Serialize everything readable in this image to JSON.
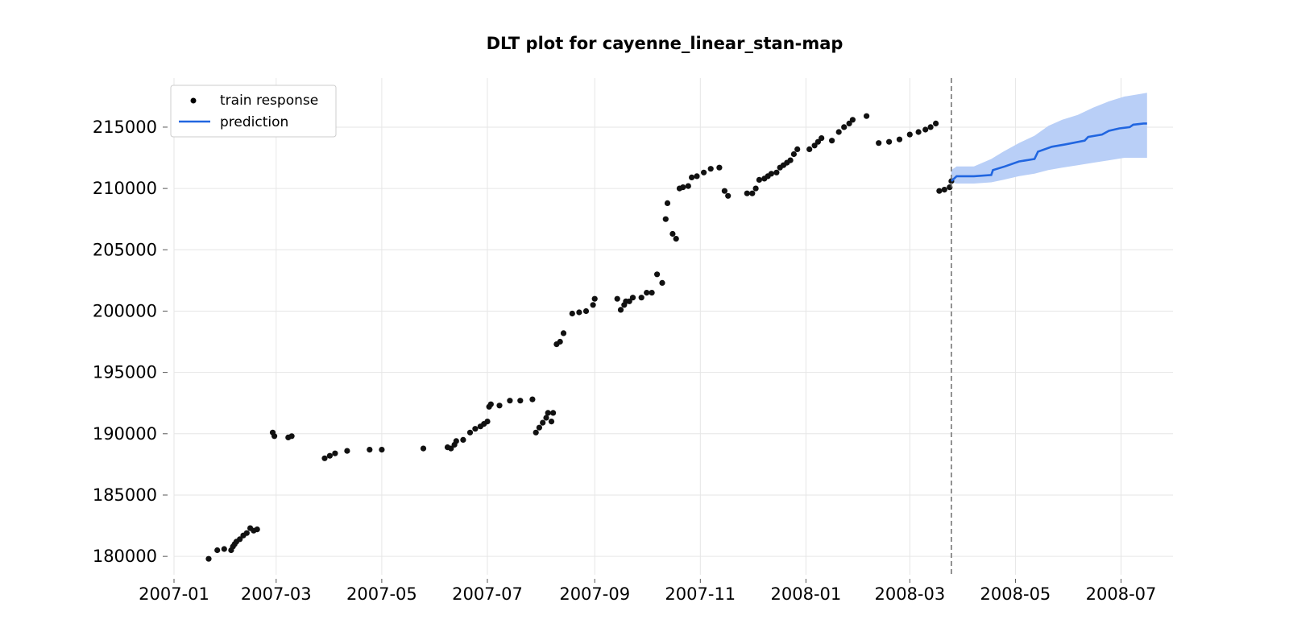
{
  "chart_data": {
    "type": "scatter",
    "title": "DLT plot for cayenne_linear_stan-map",
    "xlabel": "",
    "ylabel": "",
    "x_axis": "date",
    "xlim": [
      "2007-01-01",
      "2008-07-31"
    ],
    "ylim": [
      178500,
      219000
    ],
    "x_ticks": [
      "2007-01",
      "2007-03",
      "2007-05",
      "2007-07",
      "2007-09",
      "2007-11",
      "2008-01",
      "2008-03",
      "2008-05",
      "2008-07"
    ],
    "y_ticks": [
      180000,
      185000,
      190000,
      195000,
      200000,
      205000,
      210000,
      215000
    ],
    "grid": true,
    "legend_position": "top-left",
    "legend": [
      {
        "label": "train response",
        "marker": "dot",
        "color": "#000000"
      },
      {
        "label": "prediction",
        "marker": "line",
        "color": "#2166e0"
      }
    ],
    "split_date": "2008-03-25",
    "colors": {
      "train_points": "#111111",
      "prediction_line": "#2166e0",
      "prediction_band": "#b9cff7",
      "split_line": "#777777",
      "grid": "#e6e6e6"
    },
    "series": [
      {
        "name": "train response",
        "kind": "scatter",
        "points": [
          [
            "2007-01-21",
            179800
          ],
          [
            "2007-01-26",
            180500
          ],
          [
            "2007-01-30",
            180600
          ],
          [
            "2007-02-03",
            180500
          ],
          [
            "2007-02-04",
            180800
          ],
          [
            "2007-02-05",
            181000
          ],
          [
            "2007-02-06",
            181200
          ],
          [
            "2007-02-08",
            181400
          ],
          [
            "2007-02-10",
            181700
          ],
          [
            "2007-02-12",
            181900
          ],
          [
            "2007-02-14",
            182300
          ],
          [
            "2007-02-16",
            182100
          ],
          [
            "2007-02-18",
            182200
          ],
          [
            "2007-02-27",
            190100
          ],
          [
            "2007-02-28",
            189800
          ],
          [
            "2007-03-08",
            189700
          ],
          [
            "2007-03-10",
            189800
          ],
          [
            "2007-03-29",
            188000
          ],
          [
            "2007-04-01",
            188200
          ],
          [
            "2007-04-04",
            188400
          ],
          [
            "2007-04-11",
            188600
          ],
          [
            "2007-04-24",
            188700
          ],
          [
            "2007-05-01",
            188700
          ],
          [
            "2007-05-25",
            188800
          ],
          [
            "2007-06-08",
            188900
          ],
          [
            "2007-06-10",
            188800
          ],
          [
            "2007-06-12",
            189100
          ],
          [
            "2007-06-13",
            189400
          ],
          [
            "2007-06-17",
            189500
          ],
          [
            "2007-06-21",
            190100
          ],
          [
            "2007-06-24",
            190400
          ],
          [
            "2007-06-27",
            190600
          ],
          [
            "2007-06-29",
            190800
          ],
          [
            "2007-07-01",
            191000
          ],
          [
            "2007-07-02",
            192200
          ],
          [
            "2007-07-03",
            192400
          ],
          [
            "2007-07-08",
            192300
          ],
          [
            "2007-07-14",
            192700
          ],
          [
            "2007-07-20",
            192700
          ],
          [
            "2007-07-27",
            192800
          ],
          [
            "2007-07-29",
            190100
          ],
          [
            "2007-07-31",
            190500
          ],
          [
            "2007-08-02",
            190900
          ],
          [
            "2007-08-04",
            191300
          ],
          [
            "2007-08-05",
            191700
          ],
          [
            "2007-08-07",
            191000
          ],
          [
            "2007-08-08",
            191700
          ],
          [
            "2007-08-10",
            197300
          ],
          [
            "2007-08-12",
            197500
          ],
          [
            "2007-08-14",
            198200
          ],
          [
            "2007-08-19",
            199800
          ],
          [
            "2007-08-23",
            199900
          ],
          [
            "2007-08-27",
            200000
          ],
          [
            "2007-08-31",
            200500
          ],
          [
            "2007-09-01",
            201000
          ],
          [
            "2007-09-14",
            201000
          ],
          [
            "2007-09-16",
            200100
          ],
          [
            "2007-09-18",
            200500
          ],
          [
            "2007-09-19",
            200800
          ],
          [
            "2007-09-21",
            200800
          ],
          [
            "2007-09-23",
            201100
          ],
          [
            "2007-09-28",
            201100
          ],
          [
            "2007-10-01",
            201500
          ],
          [
            "2007-10-04",
            201500
          ],
          [
            "2007-10-07",
            203000
          ],
          [
            "2007-10-10",
            202300
          ],
          [
            "2007-10-12",
            207500
          ],
          [
            "2007-10-13",
            208800
          ],
          [
            "2007-10-16",
            206300
          ],
          [
            "2007-10-18",
            205900
          ],
          [
            "2007-10-20",
            210000
          ],
          [
            "2007-10-22",
            210100
          ],
          [
            "2007-10-25",
            210200
          ],
          [
            "2007-10-27",
            210900
          ],
          [
            "2007-10-30",
            211000
          ],
          [
            "2007-11-03",
            211300
          ],
          [
            "2007-11-07",
            211600
          ],
          [
            "2007-11-12",
            211700
          ],
          [
            "2007-11-15",
            209800
          ],
          [
            "2007-11-17",
            209400
          ],
          [
            "2007-11-28",
            209600
          ],
          [
            "2007-12-01",
            209600
          ],
          [
            "2007-12-03",
            210000
          ],
          [
            "2007-12-05",
            210700
          ],
          [
            "2007-12-08",
            210800
          ],
          [
            "2007-12-10",
            211000
          ],
          [
            "2007-12-12",
            211200
          ],
          [
            "2007-12-15",
            211300
          ],
          [
            "2007-12-17",
            211700
          ],
          [
            "2007-12-19",
            211900
          ],
          [
            "2007-12-21",
            212100
          ],
          [
            "2007-12-23",
            212300
          ],
          [
            "2007-12-25",
            212800
          ],
          [
            "2007-12-27",
            213200
          ],
          [
            "2008-01-03",
            213200
          ],
          [
            "2008-01-06",
            213500
          ],
          [
            "2008-01-08",
            213800
          ],
          [
            "2008-01-10",
            214100
          ],
          [
            "2008-01-16",
            213900
          ],
          [
            "2008-01-20",
            214600
          ],
          [
            "2008-01-23",
            215000
          ],
          [
            "2008-01-26",
            215300
          ],
          [
            "2008-01-28",
            215600
          ],
          [
            "2008-02-05",
            215900
          ],
          [
            "2008-02-12",
            213700
          ],
          [
            "2008-02-18",
            213800
          ],
          [
            "2008-02-24",
            214000
          ],
          [
            "2008-03-01",
            214400
          ],
          [
            "2008-03-06",
            214600
          ],
          [
            "2008-03-10",
            214800
          ],
          [
            "2008-03-13",
            215000
          ],
          [
            "2008-03-16",
            215300
          ],
          [
            "2008-03-18",
            209800
          ],
          [
            "2008-03-21",
            209900
          ],
          [
            "2008-03-24",
            210100
          ],
          [
            "2008-03-25",
            210600
          ]
        ]
      },
      {
        "name": "prediction",
        "kind": "line",
        "points": [
          [
            "2008-03-25",
            210600
          ],
          [
            "2008-03-28",
            211000
          ],
          [
            "2008-04-07",
            211000
          ],
          [
            "2008-04-17",
            211100
          ],
          [
            "2008-04-18",
            211500
          ],
          [
            "2008-04-25",
            211800
          ],
          [
            "2008-05-03",
            212200
          ],
          [
            "2008-05-12",
            212400
          ],
          [
            "2008-05-14",
            213000
          ],
          [
            "2008-05-22",
            213400
          ],
          [
            "2008-05-30",
            213600
          ],
          [
            "2008-06-10",
            213900
          ],
          [
            "2008-06-12",
            214200
          ],
          [
            "2008-06-20",
            214400
          ],
          [
            "2008-06-24",
            214700
          ],
          [
            "2008-06-30",
            214900
          ],
          [
            "2008-07-06",
            215000
          ],
          [
            "2008-07-08",
            215200
          ],
          [
            "2008-07-14",
            215300
          ],
          [
            "2008-07-16",
            215300
          ]
        ]
      }
    ],
    "prediction_interval": {
      "x": [
        "2008-03-25",
        "2008-03-28",
        "2008-04-07",
        "2008-04-17",
        "2008-04-24",
        "2008-05-03",
        "2008-05-12",
        "2008-05-20",
        "2008-05-28",
        "2008-06-06",
        "2008-06-15",
        "2008-06-24",
        "2008-07-03",
        "2008-07-12",
        "2008-07-16"
      ],
      "lower": [
        210500,
        210400,
        210400,
        210500,
        210700,
        211000,
        211200,
        211500,
        211700,
        211900,
        212100,
        212300,
        212500,
        212500,
        212500
      ],
      "upper": [
        211500,
        211800,
        211800,
        212400,
        213000,
        213700,
        214300,
        215100,
        215600,
        216000,
        216600,
        217100,
        217500,
        217700,
        217800
      ]
    }
  }
}
